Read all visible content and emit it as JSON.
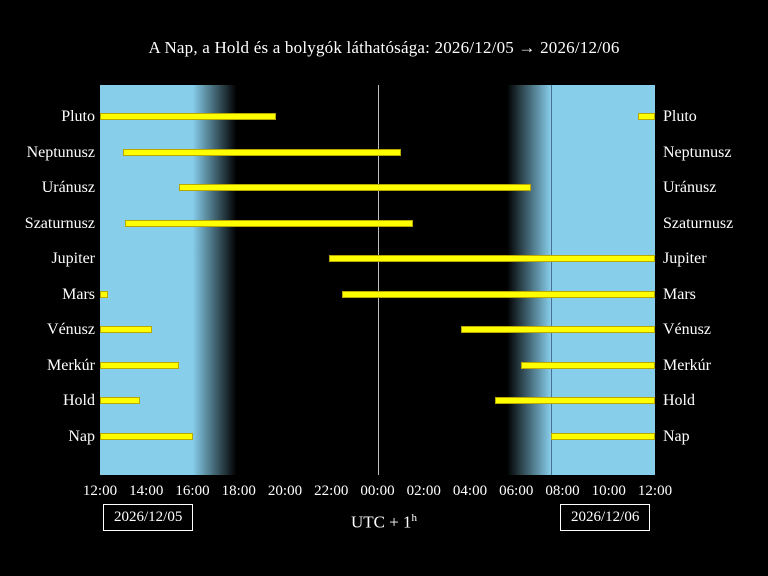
{
  "title": "A Nap, a Hold és a bolygók láthatósága: 2026/12/05 → 2026/12/06",
  "dates": {
    "left": "2026/12/05",
    "right": "2026/12/06"
  },
  "footer": {
    "timezone_base": "UTC + 1",
    "timezone_sup": "h"
  },
  "chart_data": {
    "type": "visibility-gantt",
    "x_axis": {
      "start": "2026/12/05 12:00",
      "end": "2026/12/06 12:00",
      "hours_span": 24,
      "tick_labels": [
        "12:00",
        "14:00",
        "16:00",
        "18:00",
        "20:00",
        "22:00",
        "00:00",
        "02:00",
        "04:00",
        "06:00",
        "08:00",
        "10:00",
        "12:00"
      ]
    },
    "day_night": {
      "sunset_h": 4.0,
      "dusk_end_h": 5.9,
      "dawn_start_h": 17.6,
      "sunrise_h": 19.5,
      "midnight_h": 12.0
    },
    "colors": {
      "day": "#87ceeb",
      "night": "#000000",
      "bar": "#ffff00",
      "bar_edge": "#b8a800",
      "text": "#ffffff"
    },
    "rows": [
      {
        "key": "pluto",
        "label": "Pluto",
        "bars_h": [
          [
            0,
            7.6
          ],
          [
            23.25,
            24
          ]
        ]
      },
      {
        "key": "neptunusz",
        "label": "Neptunusz",
        "bars_h": [
          [
            1.0,
            13.0
          ]
        ]
      },
      {
        "key": "uranusz",
        "label": "Uránusz",
        "bars_h": [
          [
            3.4,
            18.65
          ]
        ]
      },
      {
        "key": "szaturnusz",
        "label": "Szaturnusz",
        "bars_h": [
          [
            1.1,
            13.55
          ]
        ]
      },
      {
        "key": "jupiter",
        "label": "Jupiter",
        "bars_h": [
          [
            9.9,
            24
          ]
        ]
      },
      {
        "key": "mars",
        "label": "Mars",
        "bars_h": [
          [
            0,
            0.35
          ],
          [
            10.45,
            24
          ]
        ]
      },
      {
        "key": "venusz",
        "label": "Vénusz",
        "bars_h": [
          [
            0,
            2.25
          ],
          [
            15.6,
            24
          ]
        ]
      },
      {
        "key": "merkur",
        "label": "Merkúr",
        "bars_h": [
          [
            0,
            3.4
          ],
          [
            18.2,
            24
          ]
        ]
      },
      {
        "key": "hold",
        "label": "Hold",
        "bars_h": [
          [
            0,
            1.75
          ],
          [
            17.1,
            24
          ]
        ]
      },
      {
        "key": "nap",
        "label": "Nap",
        "bars_h": [
          [
            0,
            4.0
          ],
          [
            19.5,
            24
          ]
        ]
      }
    ]
  }
}
